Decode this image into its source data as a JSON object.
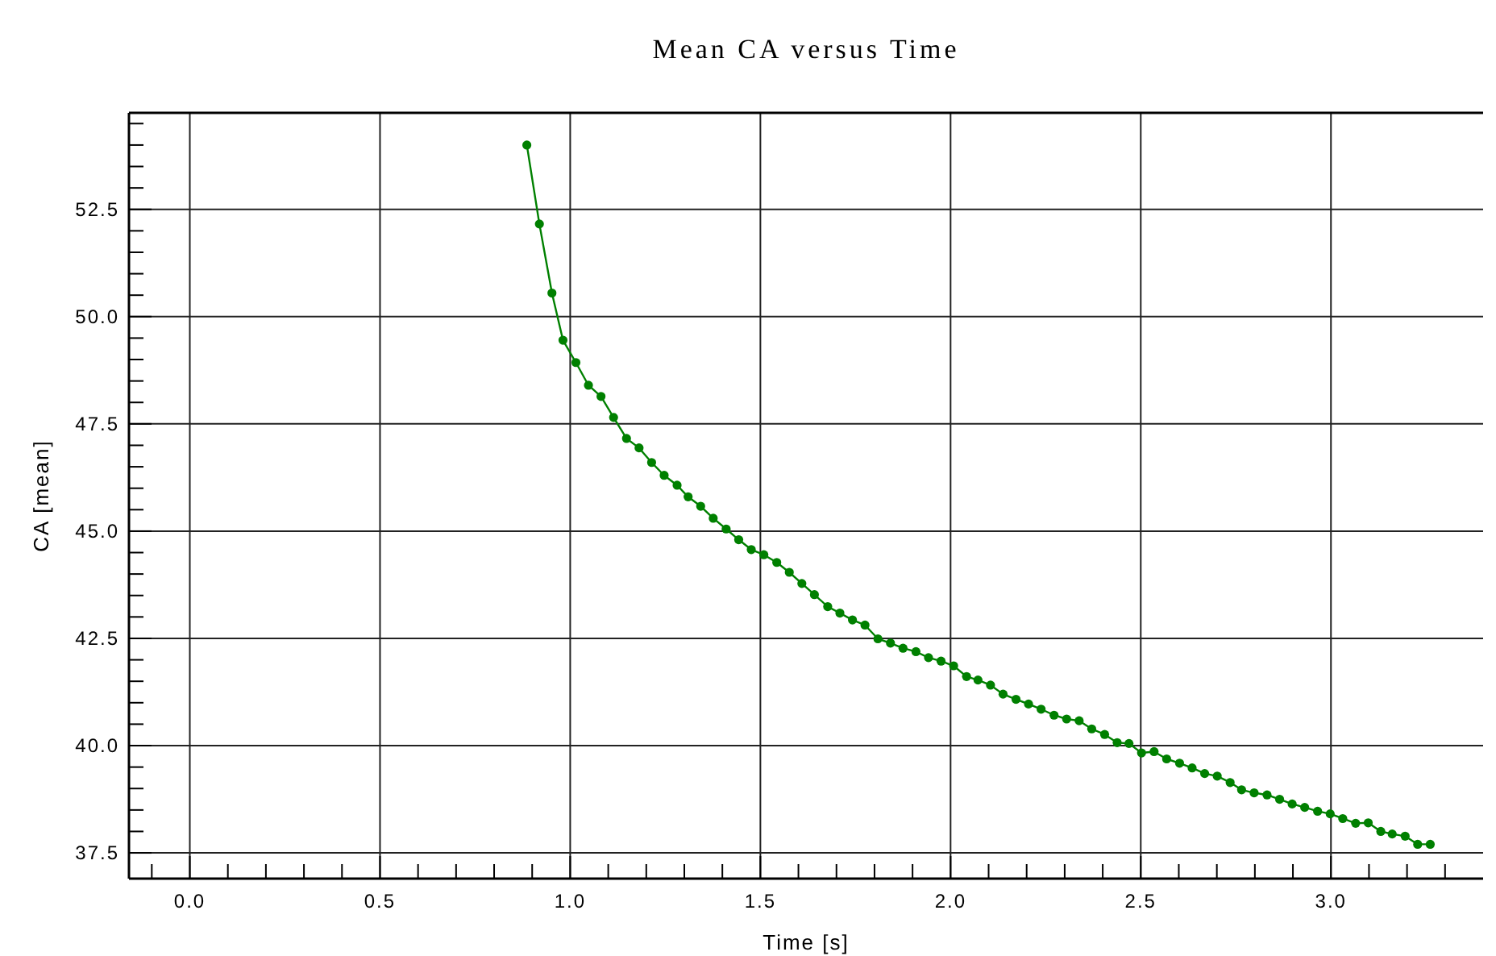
{
  "chart_data": {
    "type": "line",
    "title": "Mean CA versus Time",
    "xlabel": "Time [s]",
    "ylabel": "CA [mean]",
    "x": [
      0.886,
      0.919,
      0.952,
      0.981,
      1.015,
      1.048,
      1.081,
      1.114,
      1.148,
      1.181,
      1.214,
      1.247,
      1.281,
      1.31,
      1.343,
      1.376,
      1.41,
      1.443,
      1.476,
      1.509,
      1.543,
      1.576,
      1.609,
      1.642,
      1.677,
      1.709,
      1.742,
      1.775,
      1.809,
      1.842,
      1.875,
      1.909,
      1.942,
      1.975,
      2.008,
      2.042,
      2.072,
      2.105,
      2.138,
      2.172,
      2.205,
      2.238,
      2.272,
      2.305,
      2.338,
      2.371,
      2.405,
      2.438,
      2.469,
      2.502,
      2.535,
      2.568,
      2.602,
      2.635,
      2.668,
      2.701,
      2.735,
      2.765,
      2.798,
      2.832,
      2.865,
      2.898,
      2.931,
      2.965,
      2.998,
      3.031,
      3.065,
      3.098,
      3.131,
      3.161,
      3.195,
      3.228,
      3.261
    ],
    "series": [
      {
        "color": "#008000",
        "values": [
          54.0,
          52.16,
          50.55,
          49.45,
          48.93,
          48.4,
          48.14,
          47.65,
          47.16,
          46.94,
          46.6,
          46.3,
          46.07,
          45.8,
          45.58,
          45.3,
          45.05,
          44.8,
          44.57,
          44.45,
          44.27,
          44.04,
          43.78,
          43.52,
          43.24,
          43.09,
          42.93,
          42.81,
          42.49,
          42.39,
          42.27,
          42.19,
          42.05,
          41.97,
          41.86,
          41.61,
          41.53,
          41.41,
          41.2,
          41.08,
          40.97,
          40.85,
          40.71,
          40.62,
          40.58,
          40.39,
          40.26,
          40.07,
          40.05,
          39.83,
          39.86,
          39.69,
          39.59,
          39.48,
          39.35,
          39.29,
          39.14,
          38.97,
          38.9,
          38.85,
          38.75,
          38.64,
          38.56,
          38.47,
          38.41,
          38.3,
          38.19,
          38.2,
          38.0,
          37.94,
          37.89,
          37.7,
          37.7
        ]
      }
    ],
    "xlim": [
      -0.16,
      3.4
    ],
    "ylim": [
      36.9,
      54.75
    ],
    "xticks": [
      {
        "value": -0.1,
        "label": null
      },
      {
        "value": 0,
        "label": "0.0"
      },
      {
        "value": 0.1,
        "label": null
      },
      {
        "value": 0.2,
        "label": null
      },
      {
        "value": 0.3,
        "label": null
      },
      {
        "value": 0.4,
        "label": null
      },
      {
        "value": 0.5,
        "label": "0.5"
      },
      {
        "value": 0.6,
        "label": null
      },
      {
        "value": 0.7,
        "label": null
      },
      {
        "value": 0.8,
        "label": null
      },
      {
        "value": 0.9,
        "label": null
      },
      {
        "value": 1,
        "label": "1.0"
      },
      {
        "value": 1.1,
        "label": null
      },
      {
        "value": 1.2,
        "label": null
      },
      {
        "value": 1.3,
        "label": null
      },
      {
        "value": 1.4,
        "label": null
      },
      {
        "value": 1.5,
        "label": "1.5"
      },
      {
        "value": 1.6,
        "label": null
      },
      {
        "value": 1.7,
        "label": null
      },
      {
        "value": 1.8,
        "label": null
      },
      {
        "value": 1.9,
        "label": null
      },
      {
        "value": 2,
        "label": "2.0"
      },
      {
        "value": 2.1,
        "label": null
      },
      {
        "value": 2.2,
        "label": null
      },
      {
        "value": 2.3,
        "label": null
      },
      {
        "value": 2.4,
        "label": null
      },
      {
        "value": 2.5,
        "label": "2.5"
      },
      {
        "value": 2.6,
        "label": null
      },
      {
        "value": 2.7,
        "label": null
      },
      {
        "value": 2.8,
        "label": null
      },
      {
        "value": 2.9,
        "label": null
      },
      {
        "value": 3,
        "label": "3.0"
      },
      {
        "value": 3.1,
        "label": null
      },
      {
        "value": 3.2,
        "label": null
      },
      {
        "value": 3.3,
        "label": null
      }
    ],
    "yticks": [
      37.5,
      {
        "value": 38,
        "label": null
      },
      {
        "value": 38.5,
        "label": null
      },
      {
        "value": 39,
        "label": null
      },
      {
        "value": 39.5,
        "label": null
      },
      {
        "value": 40,
        "label": "40.0"
      },
      {
        "value": 40.5,
        "label": null
      },
      {
        "value": 41,
        "label": null
      },
      {
        "value": 41.5,
        "label": null
      },
      {
        "value": 42,
        "label": null
      },
      42.5,
      {
        "value": 43,
        "label": null
      },
      {
        "value": 43.5,
        "label": null
      },
      {
        "value": 44,
        "label": null
      },
      {
        "value": 44.5,
        "label": null
      },
      {
        "value": 45,
        "label": "45.0"
      },
      {
        "value": 45.5,
        "label": null
      },
      {
        "value": 46,
        "label": null
      },
      {
        "value": 46.5,
        "label": null
      },
      {
        "value": 47,
        "label": null
      },
      47.5,
      {
        "value": 48,
        "label": null
      },
      {
        "value": 48.5,
        "label": null
      },
      {
        "value": 49,
        "label": null
      },
      {
        "value": 49.5,
        "label": null
      },
      {
        "value": 50,
        "label": "50.0"
      },
      {
        "value": 50.5,
        "label": null
      },
      {
        "value": 51,
        "label": null
      },
      {
        "value": 51.5,
        "label": null
      },
      {
        "value": 52,
        "label": null
      },
      52.5,
      {
        "value": 53,
        "label": null
      },
      {
        "value": 53.5,
        "label": null
      },
      {
        "value": 54,
        "label": null
      },
      {
        "value": 54.5,
        "label": null
      }
    ],
    "grid": true,
    "marker": "circle",
    "line_style": "solid"
  }
}
